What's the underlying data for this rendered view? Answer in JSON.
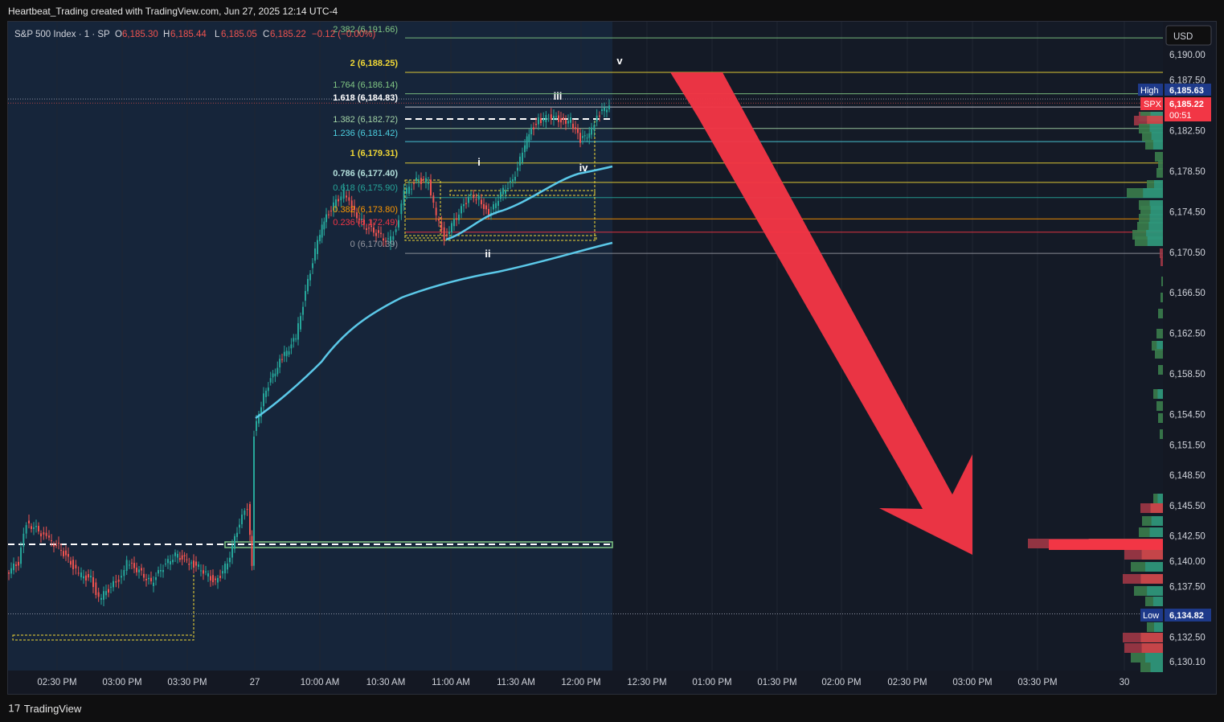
{
  "header": {
    "created_by": "Heartbeat_Trading created with TradingView.com, Jun 27, 2025 12:14 UTC-4"
  },
  "legend": {
    "symbol": "S&P 500 Index · 1 · SP",
    "o_label": "O",
    "o_val": "6,185.30",
    "h_label": "H",
    "h_val": "6,185.44",
    "l_label": "L",
    "l_val": "6,185.05",
    "c_label": "C",
    "c_val": "6,185.22",
    "change": "−0.12 (−0.00%)"
  },
  "currency": "USD",
  "footer": {
    "brand": "TradingView"
  },
  "price_labels": {
    "high_tag": "High",
    "high_val": "6,185.63",
    "spx_tag": "SPX",
    "spx_val": "6,185.22",
    "countdown": "00:51",
    "low_tag": "Low",
    "low_val": "6,134.82"
  },
  "colors": {
    "fib_yellow": "#f2d936",
    "fib_green": "#81c784",
    "fib_teal": "#26a69a",
    "fib_cyan": "#4dd0e1",
    "fib_orange": "#ff9800",
    "fib_red": "#f23645",
    "up": "#26a69a",
    "down": "#ef5350",
    "ma": "#5bc8e8",
    "arrow": "#f23645"
  },
  "chart_data": {
    "type": "candlestick",
    "symbol": "SPX",
    "timeframe": "1",
    "y_ticks": [
      "6,190.00",
      "6,187.50",
      "6,182.50",
      "6,178.50",
      "6,174.50",
      "6,170.50",
      "6,166.50",
      "6,162.50",
      "6,158.50",
      "6,154.50",
      "6,151.50",
      "6,148.50",
      "6,145.50",
      "6,142.50",
      "6,140.00",
      "6,137.50",
      "6,132.50",
      "6,130.10"
    ],
    "x_ticks": [
      "02:30 PM",
      "03:00 PM",
      "03:30 PM",
      "27",
      "10:00 AM",
      "10:30 AM",
      "11:00 AM",
      "11:30 AM",
      "12:00 PM",
      "12:30 PM",
      "01:00 PM",
      "01:30 PM",
      "02:00 PM",
      "02:30 PM",
      "03:00 PM",
      "03:30 PM",
      "30"
    ],
    "ylim": [
      6129,
      6193
    ],
    "fib_levels": [
      {
        "ratio": "2.382",
        "price": "6,191.66",
        "label": "2.382 (6,191.66)"
      },
      {
        "ratio": "2",
        "price": "6,188.25",
        "label": "2 (6,188.25)"
      },
      {
        "ratio": "1.764",
        "price": "6,186.14",
        "label": "1.764 (6,186.14)"
      },
      {
        "ratio": "1.618",
        "price": "6,184.83",
        "label": "1.618 (6,184.83)"
      },
      {
        "ratio": "1.382",
        "price": "6,182.72",
        "label": "1.382 (6,182.72)"
      },
      {
        "ratio": "1.236",
        "price": "6,181.42",
        "label": "1.236 (6,181.42)"
      },
      {
        "ratio": "1",
        "price": "6,179.31",
        "label": "1 (6,179.31)"
      },
      {
        "ratio": "0.786",
        "price": "6,177.40",
        "label": "0.786 (6,177.40)"
      },
      {
        "ratio": "0.618",
        "price": "6,175.90",
        "label": "0.618 (6,175.90)"
      },
      {
        "ratio": "0.382",
        "price": "6,173.80",
        "label": "0.382 (6,173.80)"
      },
      {
        "ratio": "0.236",
        "price": "6,172.49",
        "label": "0.236 (6,172.49)"
      },
      {
        "ratio": "0",
        "price": "6,170.39",
        "label": "0 (6,170.39)"
      }
    ],
    "wave_labels": [
      "i",
      "ii",
      "iii",
      "iv",
      "v"
    ],
    "summary": {
      "high": "6,185.63",
      "last": "6,185.22",
      "low": "6,134.82"
    }
  }
}
